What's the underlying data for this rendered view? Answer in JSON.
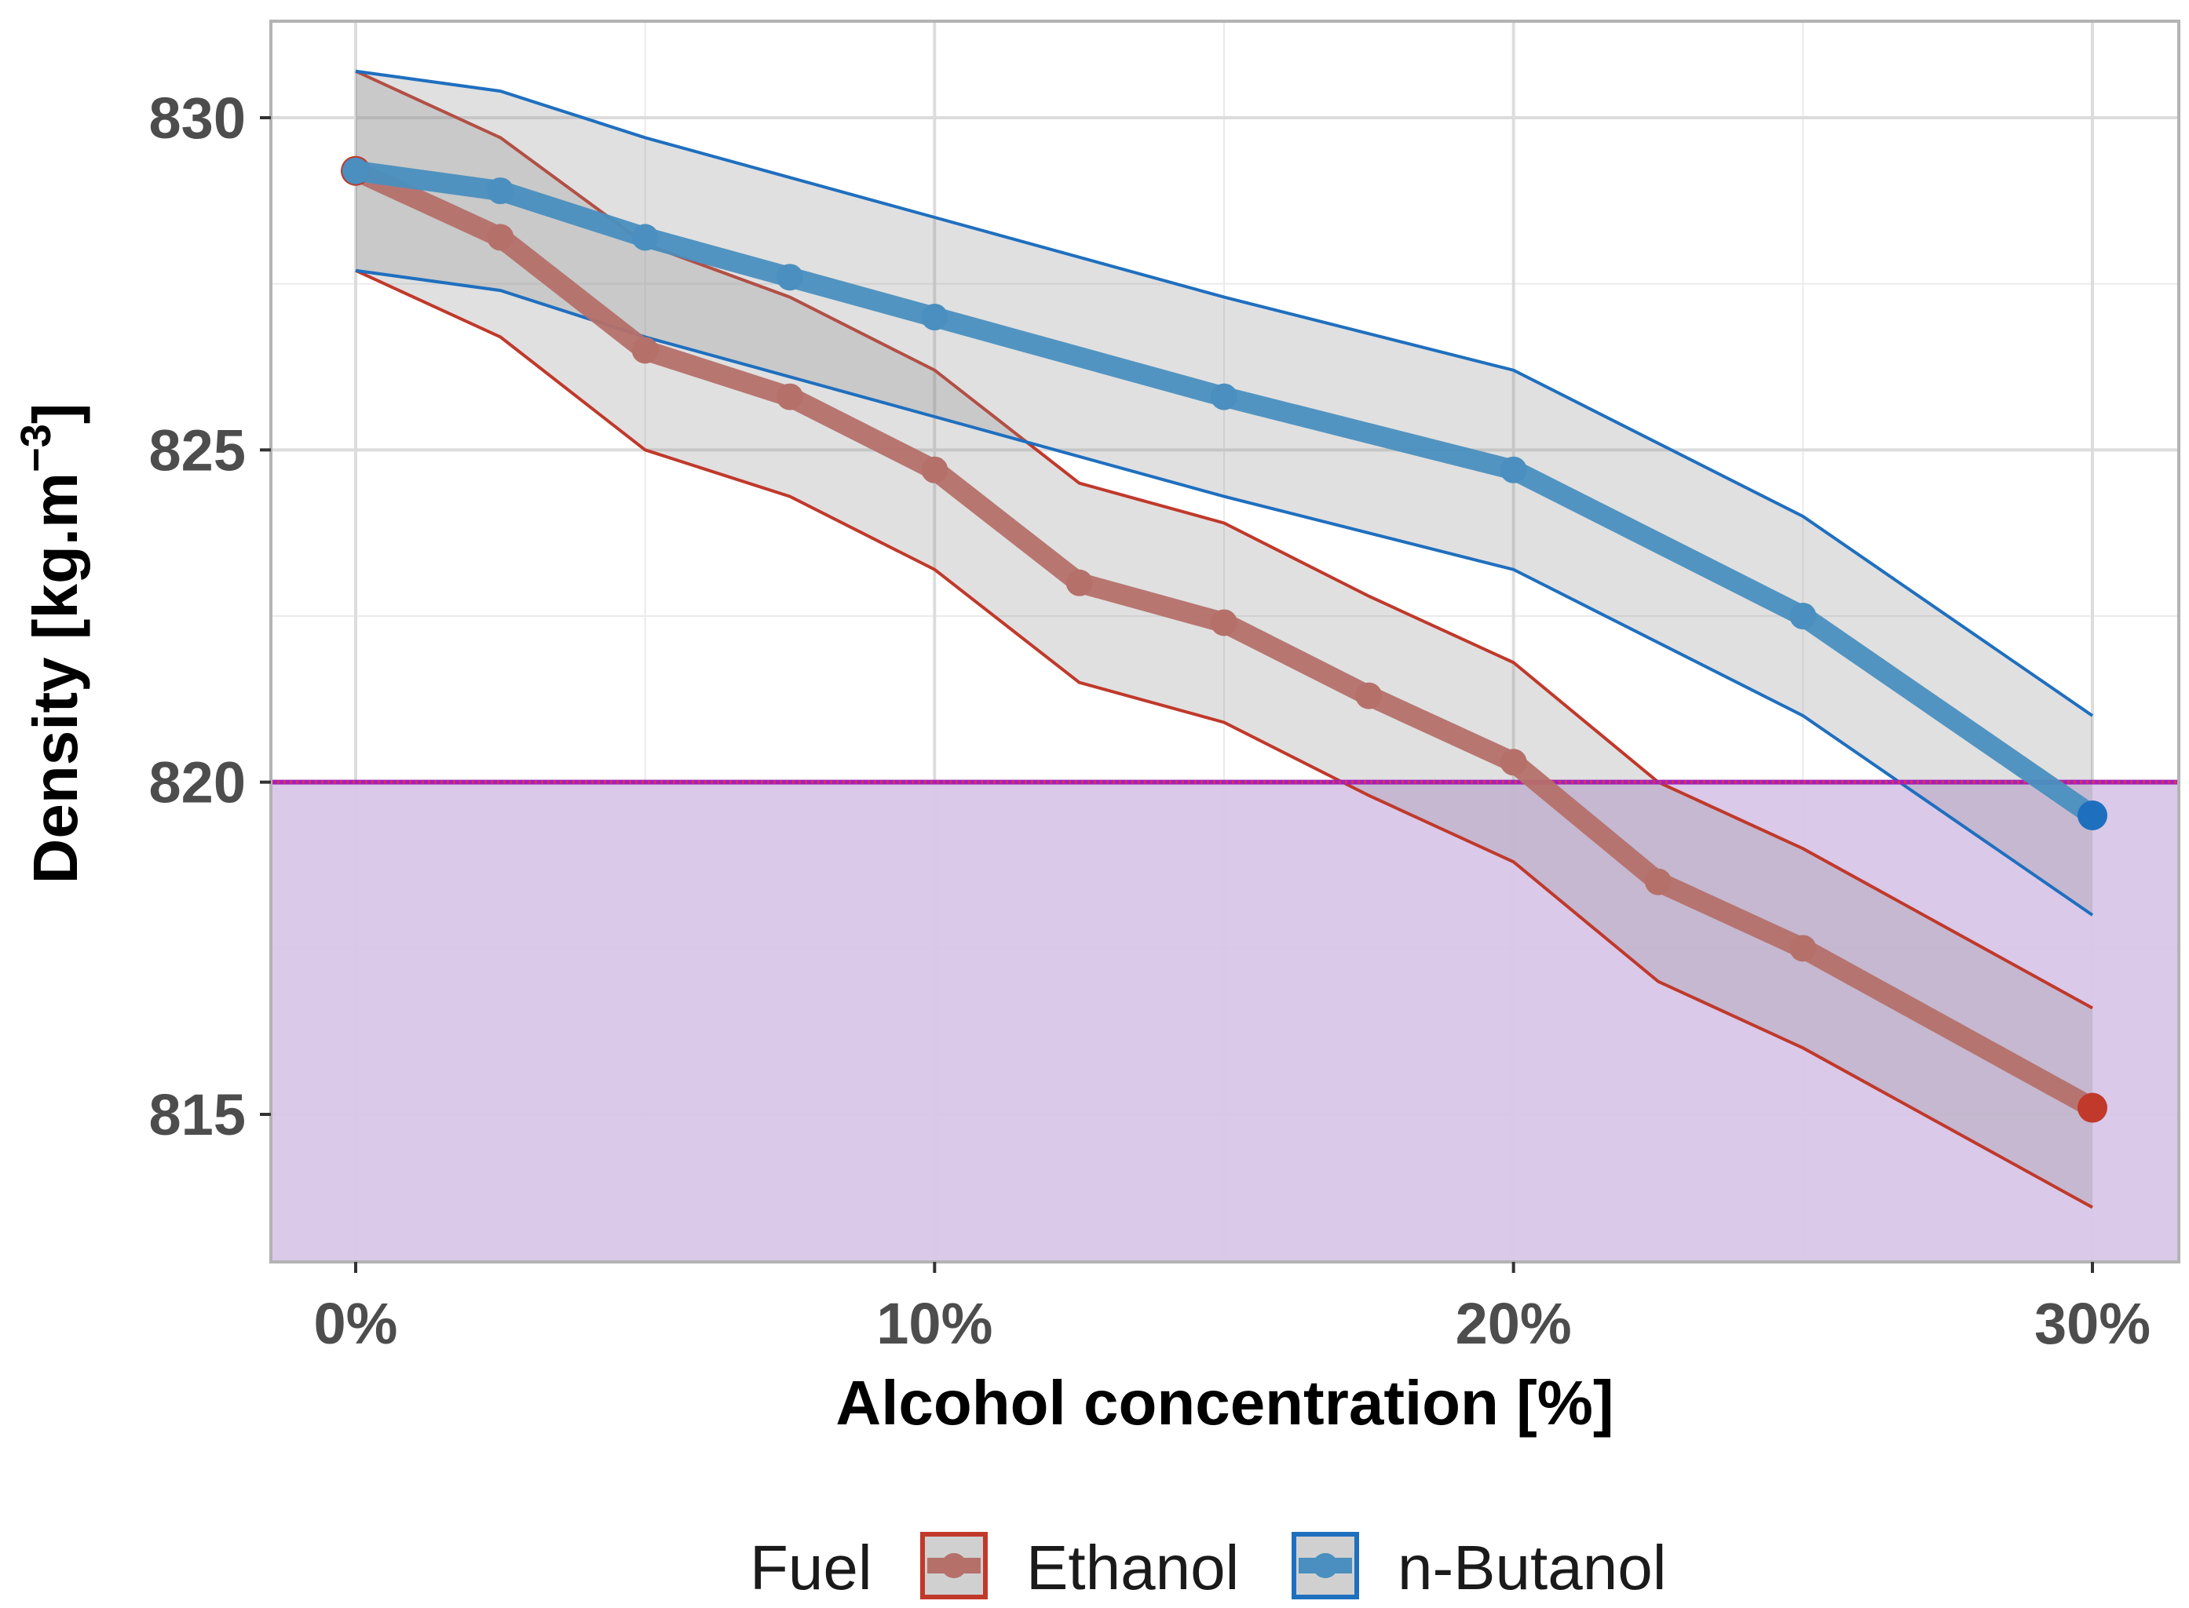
{
  "chart_data": {
    "type": "line",
    "title": "",
    "xlabel": "Alcohol concentration [%]",
    "ylabel": "Density [kg.m",
    "ylabel_superscript": "−3",
    "ylabel_close": "]",
    "xlim": [
      -1.5,
      31.5
    ],
    "ylim": [
      812.8,
      831.5
    ],
    "x_ticks": [
      0,
      10,
      20,
      30
    ],
    "x_tick_labels": [
      "0%",
      "10%",
      "20%",
      "30%"
    ],
    "y_ticks": [
      815,
      820,
      825,
      830
    ],
    "y_tick_labels": [
      "815",
      "820",
      "825",
      "830"
    ],
    "grid": true,
    "threshold": {
      "y": 820,
      "color": "#a020c0",
      "fill": "#d8c6e8",
      "fill_below": true
    },
    "legend": {
      "title": "Fuel",
      "position": "bottom",
      "entries": [
        "Ethanol",
        "n-Butanol"
      ]
    },
    "series": [
      {
        "name": "Ethanol",
        "color": "#c0392b",
        "line_color": "#b5706a",
        "x": [
          0,
          2.5,
          5,
          7.5,
          10,
          12.5,
          15,
          17.5,
          20,
          22.5,
          25,
          30
        ],
        "values": [
          829.2,
          828.2,
          826.5,
          825.8,
          824.7,
          823.0,
          822.4,
          821.3,
          820.3,
          818.5,
          817.5,
          815.1
        ],
        "upper": [
          830.7,
          829.7,
          828.1,
          827.3,
          826.2,
          824.5,
          823.9,
          822.8,
          821.8,
          820.0,
          819.0,
          816.6
        ],
        "lower": [
          827.7,
          826.7,
          825.0,
          824.3,
          823.2,
          821.5,
          820.9,
          819.8,
          818.8,
          817.0,
          816.0,
          813.6
        ]
      },
      {
        "name": "n-Butanol",
        "color": "#1f6fbf",
        "line_color": "#4a8fbf",
        "x": [
          0,
          2.5,
          5,
          7.5,
          10,
          15,
          20,
          25,
          30
        ],
        "values": [
          829.2,
          828.9,
          828.2,
          827.6,
          827.0,
          825.8,
          824.7,
          822.5,
          819.5
        ],
        "upper": [
          830.7,
          830.4,
          829.7,
          829.1,
          828.5,
          827.3,
          826.2,
          824.0,
          821.0
        ],
        "lower": [
          827.7,
          827.4,
          826.7,
          826.1,
          825.5,
          824.3,
          823.2,
          821.0,
          818.0
        ]
      }
    ]
  }
}
